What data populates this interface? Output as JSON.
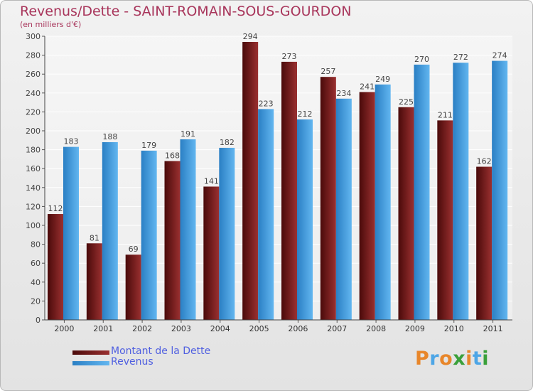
{
  "chart_data": {
    "type": "bar",
    "title": "Revenus/Dette - SAINT-ROMAIN-SOUS-GOURDON",
    "subtitle": "(en milliers d'€)",
    "categories": [
      "2000",
      "2001",
      "2002",
      "2003",
      "2004",
      "2005",
      "2006",
      "2007",
      "2008",
      "2009",
      "2010",
      "2011"
    ],
    "series": [
      {
        "name": "Montant de la Dette",
        "color": "#7a1c1c",
        "values": [
          112,
          81,
          69,
          168,
          141,
          294,
          273,
          257,
          241,
          225,
          211,
          162
        ]
      },
      {
        "name": "Revenus",
        "color": "#4ea6e6",
        "values": [
          183,
          188,
          179,
          191,
          182,
          223,
          212,
          234,
          249,
          270,
          272,
          274
        ]
      }
    ],
    "ylim": [
      0,
      300
    ],
    "yticks": [
      0,
      20,
      40,
      60,
      80,
      100,
      120,
      140,
      160,
      180,
      200,
      220,
      240,
      260,
      280,
      300
    ],
    "grid": true,
    "legend": "bottom-left"
  },
  "logo": {
    "text": "Proxiti",
    "colors": [
      "#e8862a",
      "#4ea6e6",
      "#e8862a",
      "#3aa03a",
      "#e8862a",
      "#4ea6e6",
      "#3aa03a"
    ]
  }
}
